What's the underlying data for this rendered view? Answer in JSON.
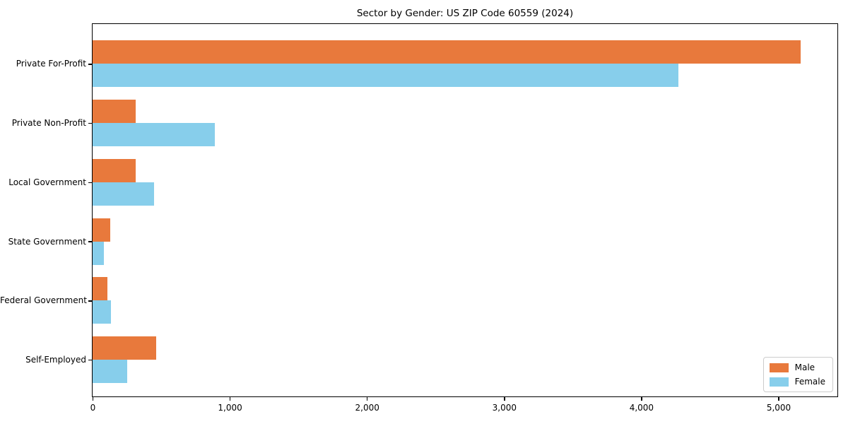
{
  "figure": {
    "background": "#ffffff",
    "axis_color": "#000000"
  },
  "chart_data": {
    "type": "bar",
    "orientation": "horizontal",
    "title": "Sector by Gender: US ZIP Code 60559 (2024)",
    "categories": [
      "Private For-Profit",
      "Private Non-Profit",
      "Local Government",
      "State Government",
      "Federal Government",
      "Self-Employed"
    ],
    "series": [
      {
        "name": "Male",
        "color": "#e8793c",
        "values": [
          5160,
          315,
          315,
          130,
          110,
          465
        ]
      },
      {
        "name": "Female",
        "color": "#87ceeb",
        "values": [
          4270,
          890,
          450,
          85,
          135,
          250
        ]
      }
    ],
    "xlim": [
      0,
      5425
    ],
    "xticks": [
      0,
      1000,
      2000,
      3000,
      4000,
      5000
    ],
    "xtick_labels": [
      "0",
      "1,000",
      "2,000",
      "3,000",
      "4,000",
      "5,000"
    ],
    "grid": false,
    "legend_position": "lower right"
  }
}
